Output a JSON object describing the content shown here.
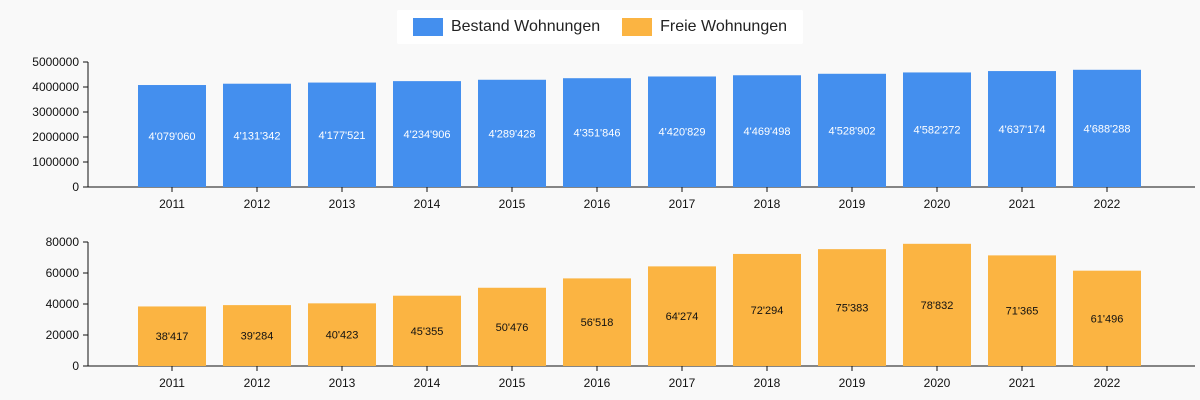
{
  "colors": {
    "bestand": "#448fee",
    "freie": "#fbb442",
    "axis": "#111111"
  },
  "legend": [
    {
      "label": "Bestand Wohnungen",
      "color": "#448fee"
    },
    {
      "label": "Freie Wohnungen",
      "color": "#fbb442"
    }
  ],
  "chart_data": [
    {
      "type": "bar",
      "categories": [
        "2011",
        "2012",
        "2013",
        "2014",
        "2015",
        "2016",
        "2017",
        "2018",
        "2019",
        "2020",
        "2021",
        "2022"
      ],
      "series": [
        {
          "name": "Bestand Wohnungen",
          "values": [
            4079060,
            4131342,
            4177521,
            4234906,
            4289428,
            4351846,
            4420829,
            4469498,
            4528902,
            4582272,
            4637174,
            4688288
          ],
          "labels": [
            "4'079'060",
            "4'131'342",
            "4'177'521",
            "4'234'906",
            "4'289'428",
            "4'351'846",
            "4'420'829",
            "4'469'498",
            "4'528'902",
            "4'582'272",
            "4'637'174",
            "4'688'288"
          ]
        }
      ],
      "ylim": [
        0,
        5000000
      ],
      "yticks": [
        0,
        1000000,
        2000000,
        3000000,
        4000000,
        5000000
      ]
    },
    {
      "type": "bar",
      "categories": [
        "2011",
        "2012",
        "2013",
        "2014",
        "2015",
        "2016",
        "2017",
        "2018",
        "2019",
        "2020",
        "2021",
        "2022"
      ],
      "series": [
        {
          "name": "Freie Wohnungen",
          "values": [
            38417,
            39284,
            40423,
            45355,
            50476,
            56518,
            64274,
            72294,
            75383,
            78832,
            71365,
            61496
          ],
          "labels": [
            "38'417",
            "39'284",
            "40'423",
            "45'355",
            "50'476",
            "56'518",
            "64'274",
            "72'294",
            "75'383",
            "78'832",
            "71'365",
            "61'496"
          ]
        }
      ],
      "ylim": [
        0,
        80000
      ],
      "yticks": [
        0,
        20000,
        40000,
        60000,
        80000
      ]
    }
  ]
}
